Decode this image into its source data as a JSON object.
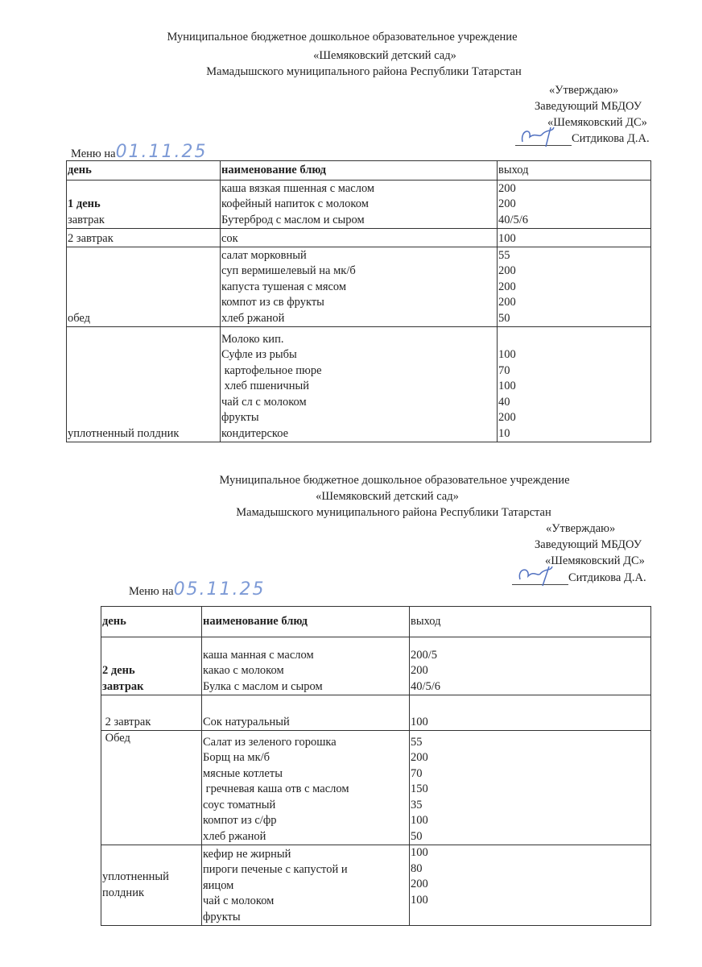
{
  "menus": [
    {
      "header": {
        "line1": "Муниципальное бюджетное дошкольное образовательное  учреждение",
        "line2": "«Шемяковский детский сад»",
        "line3": "Мамадышского муниципального района Республики Татарстан"
      },
      "approval": {
        "approve": "«Утверждаю»",
        "position": "Заведующий МБДОУ",
        "org": "«Шемяковский ДС»",
        "name": "Ситдикова Д.А."
      },
      "menu_label": "Меню на",
      "date": "01.11.25",
      "columns": [
        "день",
        "наименование блюд",
        "выход"
      ],
      "rows": [
        {
          "meal": [
            "1 день",
            "завтрак"
          ],
          "meal_bold": [
            true,
            false
          ],
          "dishes": [
            "каша вязкая пшенная с маслом",
            "кофейный напиток с молоком",
            "Бутерброд с маслом и сыром"
          ],
          "yields": [
            "200",
            "200",
            "40/5/6"
          ]
        },
        {
          "meal": [
            "2 завтрак"
          ],
          "meal_bold": [
            false
          ],
          "dishes": [
            "сок"
          ],
          "yields": [
            "100"
          ]
        },
        {
          "meal": [
            "обед"
          ],
          "meal_bold": [
            false
          ],
          "dishes": [
            "салат морковный",
            "суп вермишелевый на мк/б",
            "капуста тушеная с мясом",
            "компот из св фрукты",
            "хлеб ржаной"
          ],
          "yields": [
            "55",
            "200",
            "200",
            "200",
            "50"
          ]
        },
        {
          "meal": [
            "уплотненный полдник"
          ],
          "meal_bold": [
            false
          ],
          "dishes": [
            "Молоко кип.",
            "Суфле из рыбы",
            " картофельное пюре",
            " хлеб пшеничный",
            "чай сл с молоком",
            "фрукты",
            "кондитерское"
          ],
          "yields": [
            "100",
            "70",
            "100",
            "40",
            "200",
            "10"
          ]
        }
      ]
    },
    {
      "header": {
        "line1": "Муниципальное бюджетное дошкольное образовательное  учреждение",
        "line2": "«Шемяковский детский сад»",
        "line3": "Мамадышского муниципального района Республики Татарстан"
      },
      "approval": {
        "approve": "«Утверждаю»",
        "position": "Заведующий МБДОУ",
        "org": "«Шемяковский ДС»",
        "name": "Ситдикова Д.А."
      },
      "menu_label": "Меню на",
      "date": "05.11.25",
      "columns": [
        "день",
        "наименование блюд",
        "выход"
      ],
      "rows": [
        {
          "meal": [
            "2 день",
            "завтрак"
          ],
          "meal_bold": [
            true,
            true
          ],
          "dishes": [
            "каша манная с маслом",
            "какао с молоком",
            "Булка с маслом и сыром"
          ],
          "yields": [
            "200/5",
            "200",
            "40/5/6"
          ]
        },
        {
          "meal": [
            " 2 завтрак"
          ],
          "meal_bold": [
            false
          ],
          "dishes": [
            "Сок натуральный"
          ],
          "yields": [
            "100"
          ]
        },
        {
          "meal": [
            " Обед"
          ],
          "meal_bold": [
            false
          ],
          "meal_top": true,
          "dishes": [
            "Салат из зеленого горошка",
            "Борщ на мк/б",
            "мясные котлеты",
            " гречневая каша отв с маслом",
            "соус томатный",
            "компот из с/фр",
            "хлеб ржаной"
          ],
          "yields": [
            "55",
            "200",
            "70",
            "150",
            "35",
            "100",
            "50"
          ]
        },
        {
          "meal": [
            "уплотненный",
            "полдник"
          ],
          "meal_bold": [
            false,
            false
          ],
          "meal_middle": true,
          "dishes": [
            "кефир не жирный",
            "пироги печеные с капустой и",
            "яицом",
            "чай с молоком",
            "фрукты"
          ],
          "yields": [
            "100",
            "80",
            "200",
            "100"
          ],
          "yields_top": true
        }
      ]
    }
  ]
}
